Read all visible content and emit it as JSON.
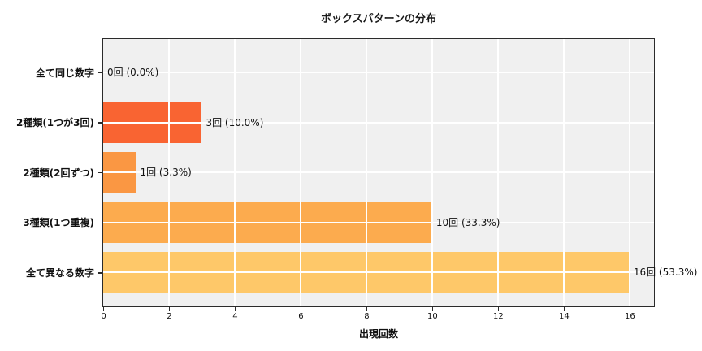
{
  "chart_data": {
    "type": "bar",
    "orientation": "horizontal",
    "title": "ボックスパターンの分布",
    "xlabel": "出現回数",
    "ylabel": "",
    "categories": [
      "全て同じ数字",
      "2種類(1つが3回)",
      "2種類(2回ずつ)",
      "3種類(1つ重複)",
      "全て異なる数字"
    ],
    "values": [
      0,
      3,
      1,
      10,
      16
    ],
    "percentages": [
      0.0,
      10.0,
      3.3,
      33.3,
      53.3
    ],
    "annotations": [
      "0回 (0.0%)",
      "3回 (10.0%)",
      "1回 (3.3%)",
      "10回 (33.3%)",
      "16回 (53.3%)"
    ],
    "bar_colors": [
      "#f95d2c",
      "#f96432",
      "#fa9743",
      "#fcab4e",
      "#fec869"
    ],
    "x_ticks": [
      0,
      2,
      4,
      6,
      8,
      10,
      12,
      14,
      16
    ],
    "xlim": [
      0,
      16.72
    ],
    "grid": true,
    "grid_on_top": true,
    "legend_position": "none",
    "plot_bg_color": "#f0f0f0",
    "grid_color": "#ffffff",
    "figure_bg_color": "#ffffff",
    "axis_border_color": "#2b2b2b",
    "text_color": "#111111"
  }
}
